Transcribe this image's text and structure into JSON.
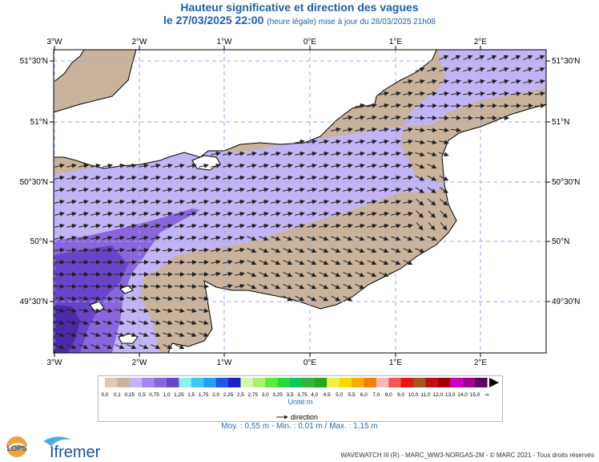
{
  "header": {
    "title": "Hauteur significative et direction des vagues",
    "date_line": "le 27/03/2025 22:00",
    "update_note": "(heure légale) mise à jour du 28/03/2025 21h08"
  },
  "map": {
    "lon_labels": [
      "3°W",
      "2°W",
      "1°W",
      "0°E",
      "1°E",
      "2°E"
    ],
    "lat_labels": [
      "51°30'N",
      "51°N",
      "50°30'N",
      "50°N",
      "49°30'N"
    ],
    "colors": {
      "land": "#ffffff",
      "low": "#c9b39c",
      "mid": "#c2b4f5",
      "high": "#8a66dc",
      "higher": "#6a44c8",
      "highest": "#4a2aa8",
      "grid": "#a0a8e8",
      "arrow": "#222222"
    }
  },
  "legend": {
    "labels": [
      "0,0",
      "0,1",
      "0,25",
      "0,5",
      "0,75",
      "1,0",
      "1,25",
      "1,5",
      "1,75",
      "2,0",
      "2,25",
      "2,5",
      "2,75",
      "3,0",
      "3,25",
      "3,5",
      "3,75",
      "4,0",
      "4,5",
      "5,0",
      "5,5",
      "6,0",
      "7,0",
      "8,0",
      "9,0",
      "10,0",
      "11,0",
      "12,0",
      "13,0",
      "14,0",
      "15,0",
      "∞"
    ],
    "colors": [
      "#e2c8b8",
      "#c9b39c",
      "#c2b4f5",
      "#a387ea",
      "#8a66dc",
      "#6a44c8",
      "#8ef0f0",
      "#40c8f0",
      "#2a9ef0",
      "#1c5ae0",
      "#1c20c8",
      "#d8f7a8",
      "#a8f070",
      "#60e840",
      "#28d838",
      "#10c858",
      "#38b040",
      "#20a820",
      "#f0f048",
      "#f8d800",
      "#f8b000",
      "#f08000",
      "#f8b8b8",
      "#f05858",
      "#e01818",
      "#a05820",
      "#c01010",
      "#a00000",
      "#d000c0",
      "#a00090",
      "#600060"
    ],
    "unit": "Unité:m",
    "direction_label": "direction"
  },
  "stats": {
    "text": "Moy. : 0,55 m  -  Min. : 0,01 m / Max. : 1,15 m"
  },
  "footer": {
    "credits": "WAVEWATCH III (R) - MARC_WW3-NORGAS-2M - © MARC 2021 - Tous droits réservés",
    "logo1": "LOPS",
    "logo2": "Ifremer"
  }
}
